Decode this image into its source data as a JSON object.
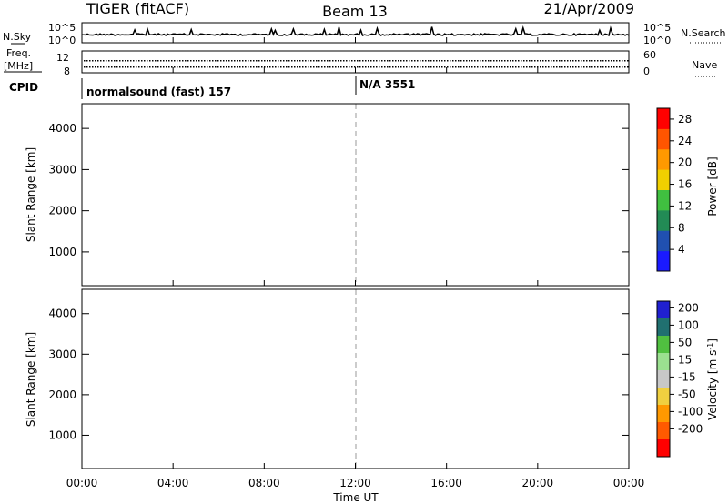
{
  "header": {
    "title_left": "TIGER (fitACF)",
    "title_center": "Beam 13",
    "title_right": "21/Apr/2009"
  },
  "strips": {
    "nsky_label": "N.Sky",
    "nsky_ticks": [
      "10^5",
      "10^0"
    ],
    "nsearch_label": "N.Search",
    "freq_label_1": "Freq.",
    "freq_label_2": "[MHz]",
    "freq_ticks": [
      "8",
      "12"
    ],
    "nave_ticks": [
      "60",
      "0"
    ],
    "nave_label": "Nave",
    "cpid_label": "CPID",
    "cpid_entries": [
      "normalsound (fast) 157",
      "N/A 3551"
    ]
  },
  "chart_data": [
    {
      "type": "heatmap",
      "quantity": "Power",
      "x": [
        "00:00",
        "04:00",
        "08:00",
        "12:00",
        "16:00",
        "20:00",
        "00:00"
      ],
      "xlabel": "Time UT",
      "ylabel": "Slant Range [km]",
      "yticks": [
        1000,
        2000,
        3000,
        4000
      ],
      "ylim": [
        180,
        4600
      ],
      "colorbar_label": "Power [dB]",
      "colorbar_ticks": [
        4,
        8,
        12,
        16,
        20,
        24,
        28
      ],
      "colorbar_range": [
        0,
        30
      ],
      "colors": [
        "#1a1aff",
        "#2050b0",
        "#228b55",
        "#40c040",
        "#f0d000",
        "#ff9900",
        "#ff5500",
        "#ff0000"
      ]
    },
    {
      "type": "heatmap",
      "quantity": "Velocity",
      "x": [
        "00:00",
        "04:00",
        "08:00",
        "12:00",
        "16:00",
        "20:00",
        "00:00"
      ],
      "xlabel": "Time UT",
      "ylabel": "Slant Range [km]",
      "yticks": [
        1000,
        2000,
        3000,
        4000
      ],
      "ylim": [
        180,
        4600
      ],
      "colorbar_label": "Velocity [m s^-1]",
      "colorbar_ticks": [
        "200",
        "100",
        "50",
        "15",
        "-15",
        "-50",
        "-100",
        "-200"
      ],
      "colors": [
        "#2020d0",
        "#207070",
        "#50c040",
        "#9be090",
        "#c8c8c8",
        "#f0d040",
        "#ff9900",
        "#ff5a00",
        "#ff0000"
      ]
    }
  ]
}
